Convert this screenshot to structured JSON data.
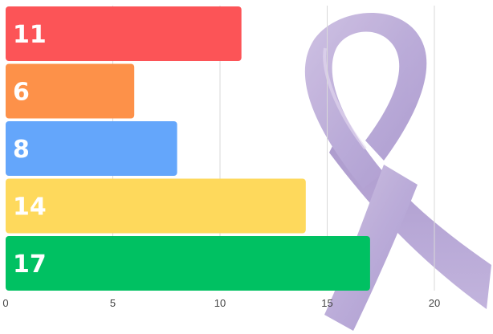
{
  "chart_data": {
    "type": "bar",
    "orientation": "horizontal",
    "title": "",
    "xlabel": "",
    "ylabel": "",
    "values": [
      11,
      6,
      8,
      14,
      17
    ],
    "bar_colors": [
      "#fc5457",
      "#fd9149",
      "#64a6fb",
      "#fed95c",
      "#00c162"
    ],
    "data_labels": [
      "11",
      "6",
      "8",
      "14",
      "17"
    ],
    "xlim": [
      0,
      23
    ],
    "xticks": [
      0,
      5,
      10,
      15,
      20
    ],
    "xtick_labels": [
      "0",
      "5",
      "10",
      "15",
      "20"
    ],
    "grid": "vertical",
    "legend": "none",
    "background_decoration": "lavender-awareness-ribbon"
  }
}
